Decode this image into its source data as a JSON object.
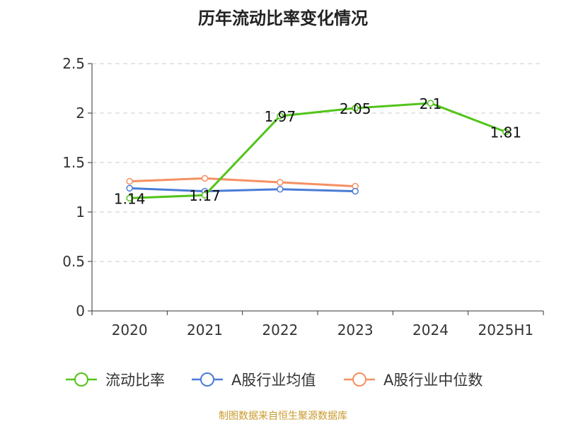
{
  "chart_data": {
    "type": "line",
    "title": "历年流动比率变化情况",
    "categories": [
      "2020",
      "2021",
      "2022",
      "2023",
      "2024",
      "2025H1"
    ],
    "y_ticks": [
      "0",
      "0.5",
      "1",
      "1.5",
      "2",
      "2.5"
    ],
    "ylim": [
      0,
      2.5
    ],
    "grid": true,
    "legend_position": "bottom-center",
    "series": [
      {
        "name": "流动比率",
        "color": "#52c41a",
        "values": [
          1.14,
          1.17,
          1.97,
          2.05,
          2.1,
          1.81
        ],
        "labels": [
          "1.14",
          "1.17",
          "1.97",
          "2.05",
          "2.1",
          "1.81"
        ]
      },
      {
        "name": "A股行业均值",
        "color": "#4a7bd6",
        "values": [
          1.24,
          1.21,
          1.23,
          1.21,
          null,
          null
        ]
      },
      {
        "name": "A股行业中位数",
        "color": "#f59062",
        "values": [
          1.31,
          1.34,
          1.3,
          1.26,
          null,
          null
        ]
      }
    ]
  },
  "footer": {
    "source": "制图数据来自恒生聚源数据库"
  }
}
